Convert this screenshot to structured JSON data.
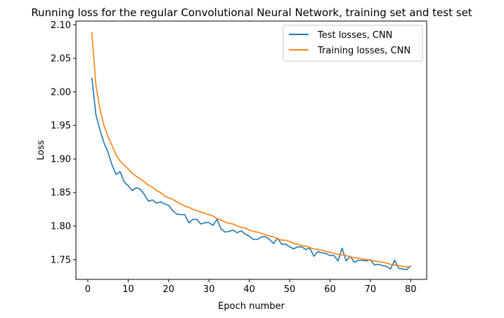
{
  "chart_data": {
    "type": "line",
    "title": "Running loss for the regular Convolutional Neural Network, training set and test set",
    "xlabel": "Epoch number",
    "ylabel": "Loss",
    "xlim": [
      -2.95,
      83.95
    ],
    "ylim": [
      1.7205,
      2.1055
    ],
    "xticks": [
      0,
      10,
      20,
      30,
      40,
      50,
      60,
      70,
      80
    ],
    "yticks": [
      1.75,
      1.8,
      1.85,
      1.9,
      1.95,
      2.0,
      2.05,
      2.1
    ],
    "grid": false,
    "legend_position": "top-right",
    "series": [
      {
        "name": "Test losses, CNN",
        "color": "#1f77b4",
        "x": [
          1,
          2,
          3,
          4,
          5,
          6,
          7,
          8,
          9,
          10,
          11,
          12,
          13,
          14,
          15,
          16,
          17,
          18,
          19,
          20,
          21,
          22,
          23,
          24,
          25,
          26,
          27,
          28,
          29,
          30,
          31,
          32,
          33,
          34,
          35,
          36,
          37,
          38,
          39,
          40,
          41,
          42,
          43,
          44,
          45,
          46,
          47,
          48,
          49,
          50,
          51,
          52,
          53,
          54,
          55,
          56,
          57,
          58,
          59,
          60,
          61,
          62,
          63,
          64,
          65,
          66,
          67,
          68,
          69,
          70,
          71,
          72,
          73,
          74,
          75,
          76,
          77,
          78,
          79,
          80
        ],
        "values": [
          2.021,
          1.966,
          1.943,
          1.924,
          1.91,
          1.891,
          1.877,
          1.881,
          1.866,
          1.86,
          1.853,
          1.857,
          1.855,
          1.847,
          1.837,
          1.839,
          1.834,
          1.836,
          1.833,
          1.831,
          1.823,
          1.818,
          1.817,
          1.817,
          1.805,
          1.81,
          1.81,
          1.803,
          1.805,
          1.805,
          1.801,
          1.81,
          1.796,
          1.791,
          1.792,
          1.794,
          1.79,
          1.793,
          1.788,
          1.785,
          1.78,
          1.78,
          1.784,
          1.784,
          1.78,
          1.774,
          1.782,
          1.773,
          1.773,
          1.769,
          1.766,
          1.769,
          1.769,
          1.765,
          1.767,
          1.755,
          1.762,
          1.76,
          1.759,
          1.756,
          1.756,
          1.748,
          1.767,
          1.748,
          1.755,
          1.746,
          1.749,
          1.749,
          1.748,
          1.75,
          1.742,
          1.743,
          1.741,
          1.74,
          1.736,
          1.749,
          1.737,
          1.736,
          1.735,
          1.741
        ]
      },
      {
        "name": "Training losses, CNN",
        "color": "#ff7f0e",
        "x": [
          1,
          2,
          3,
          4,
          5,
          6,
          7,
          8,
          9,
          10,
          11,
          12,
          13,
          14,
          15,
          16,
          17,
          18,
          19,
          20,
          21,
          22,
          23,
          24,
          25,
          26,
          27,
          28,
          29,
          30,
          31,
          32,
          33,
          34,
          35,
          36,
          37,
          38,
          39,
          40,
          41,
          42,
          43,
          44,
          45,
          46,
          47,
          48,
          49,
          50,
          51,
          52,
          53,
          54,
          55,
          56,
          57,
          58,
          59,
          60,
          61,
          62,
          63,
          64,
          65,
          66,
          67,
          68,
          69,
          70,
          71,
          72,
          73,
          74,
          75,
          76,
          77,
          78,
          79,
          80
        ],
        "values": [
          2.089,
          2.01,
          1.974,
          1.95,
          1.933,
          1.92,
          1.906,
          1.897,
          1.891,
          1.885,
          1.879,
          1.874,
          1.87,
          1.866,
          1.861,
          1.858,
          1.853,
          1.85,
          1.845,
          1.842,
          1.84,
          1.836,
          1.833,
          1.83,
          1.828,
          1.825,
          1.823,
          1.821,
          1.819,
          1.817,
          1.815,
          1.811,
          1.809,
          1.806,
          1.804,
          1.803,
          1.8,
          1.798,
          1.797,
          1.794,
          1.792,
          1.791,
          1.789,
          1.787,
          1.785,
          1.784,
          1.781,
          1.779,
          1.779,
          1.777,
          1.774,
          1.773,
          1.771,
          1.77,
          1.768,
          1.766,
          1.765,
          1.764,
          1.762,
          1.761,
          1.759,
          1.758,
          1.757,
          1.756,
          1.754,
          1.753,
          1.752,
          1.751,
          1.75,
          1.749,
          1.748,
          1.747,
          1.746,
          1.745,
          1.743,
          1.742,
          1.741,
          1.74,
          1.739,
          1.739
        ]
      }
    ]
  }
}
